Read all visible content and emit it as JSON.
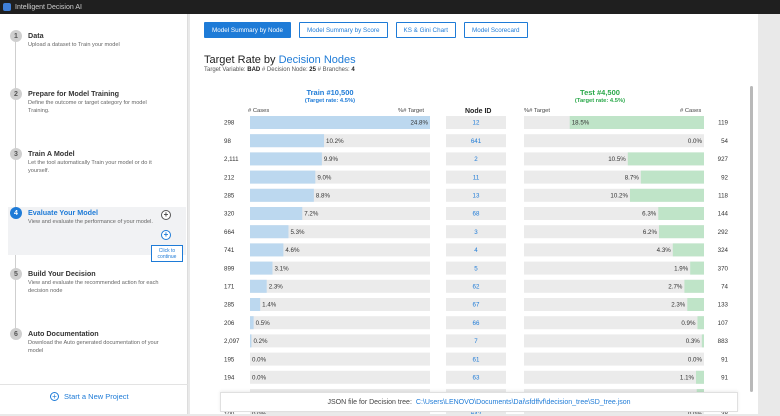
{
  "window": {
    "title": "Intelligent Decision AI"
  },
  "sidebar": {
    "steps": [
      {
        "num": "1",
        "title": "Data",
        "desc": "Upload a dataset to Train your model"
      },
      {
        "num": "2",
        "title": "Prepare for Model Training",
        "desc": "Define the outcome or target category for model Training."
      },
      {
        "num": "3",
        "title": "Train A Model",
        "desc": "Let the tool automatically Train your model or do it yourself."
      },
      {
        "num": "4",
        "title": "Evaluate Your Model",
        "desc": "View and evaluate the performance of your model."
      },
      {
        "num": "5",
        "title": "Build Your Decision",
        "desc": "View and evaluate the recommended action for each decision node"
      },
      {
        "num": "6",
        "title": "Auto Documentation",
        "desc": "Download the Auto generated documentation of your model"
      }
    ],
    "tooltip": "Click to continue",
    "new_project": "Start a New Project"
  },
  "tabs": [
    "Model Summary by Node",
    "Model Summary by Score",
    "KS & Gini Chart",
    "Model Scorecard"
  ],
  "heading": {
    "prefix": "Target Rate by ",
    "highlight": "Decision Nodes"
  },
  "meta": {
    "target_label": "Target Variable:",
    "target_value": "BAD",
    "nodes_label": "# Decision Node:",
    "nodes_value": "25",
    "branches_label": "# Branches:",
    "branches_value": "4"
  },
  "train": {
    "title": "Train #10,500",
    "sub": "(Target rate: 4.5%)",
    "col_cases": "# Cases",
    "col_target": "%# Target"
  },
  "test": {
    "title": "Test #4,500",
    "sub": "(Target rate: 4.5%)",
    "col_cases": "# Cases",
    "col_target": "%# Target"
  },
  "node_col": "Node ID",
  "colors": {
    "accent": "#1e7bd7",
    "train_bar": "#bcd8ef",
    "test_bar": "#bfe4c8",
    "track": "#ebebeb"
  },
  "chart_data": {
    "type": "bar",
    "categories": [
      "12",
      "641",
      "2",
      "11",
      "13",
      "68",
      "3",
      "4",
      "5",
      "62",
      "67",
      "66",
      "7",
      "61",
      "63",
      "65",
      "642"
    ],
    "train_cases": [
      "298",
      "98",
      "2,111",
      "212",
      "285",
      "320",
      "664",
      "741",
      "899",
      "171",
      "285",
      "206",
      "2,097",
      "195",
      "194",
      "942",
      "100"
    ],
    "train_target": [
      "24.8%",
      "10.2%",
      "9.9%",
      "9.0%",
      "8.8%",
      "7.2%",
      "5.3%",
      "4.6%",
      "3.1%",
      "2.3%",
      "1.4%",
      "0.5%",
      "0.2%",
      "0.0%",
      "0.0%",
      "0.0%",
      "0.0%"
    ],
    "train_values": [
      24.8,
      10.2,
      9.9,
      9.0,
      8.8,
      7.2,
      5.3,
      4.6,
      3.1,
      2.3,
      1.4,
      0.5,
      0.2,
      0.0,
      0.0,
      0.0,
      0.0
    ],
    "test_cases": [
      "119",
      "54",
      "927",
      "92",
      "118",
      "144",
      "292",
      "324",
      "370",
      "74",
      "133",
      "107",
      "883",
      "91",
      "91",
      "391",
      "38"
    ],
    "test_target": [
      "18.5%",
      "0.0%",
      "10.5%",
      "8.7%",
      "10.2%",
      "6.3%",
      "6.2%",
      "4.3%",
      "1.9%",
      "2.7%",
      "2.3%",
      "0.9%",
      "0.3%",
      "0.0%",
      "1.1%",
      "1.0%",
      "0.0%"
    ],
    "test_values": [
      18.5,
      0.0,
      10.5,
      8.7,
      10.2,
      6.3,
      6.2,
      4.3,
      1.9,
      2.7,
      2.3,
      0.9,
      0.3,
      0.0,
      1.1,
      1.0,
      0.0
    ],
    "max_value": 24.8
  },
  "footer": {
    "label": "JSON file for Decision tree:",
    "path": "C:\\Users\\LENOVO\\Documents\\Dai\\sfdffvf\\decision_tree\\SD_tree.json"
  }
}
